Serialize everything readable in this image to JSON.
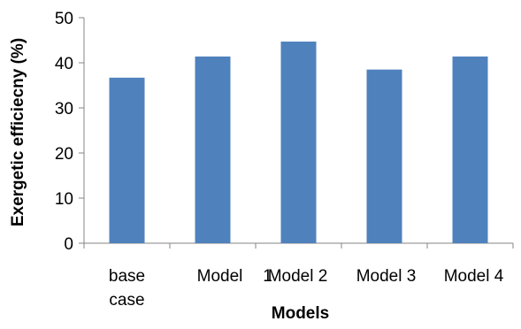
{
  "chart_data": {
    "type": "bar",
    "categories": [
      [
        "base",
        "case"
      ],
      [
        "Model",
        "1"
      ],
      [
        "Model 2"
      ],
      [
        "Model 3"
      ],
      [
        "Model 4"
      ]
    ],
    "values": [
      36.7,
      41.4,
      44.7,
      38.5,
      41.4
    ],
    "title": "",
    "xlabel": "Models",
    "ylabel": "Exergetic efficiecny (%)",
    "ylim": [
      0,
      50
    ],
    "yticks": [
      "0",
      "10",
      "20",
      "30",
      "40",
      "50"
    ],
    "bar_color": "#4F81BD",
    "grid": false,
    "legend": "none"
  }
}
